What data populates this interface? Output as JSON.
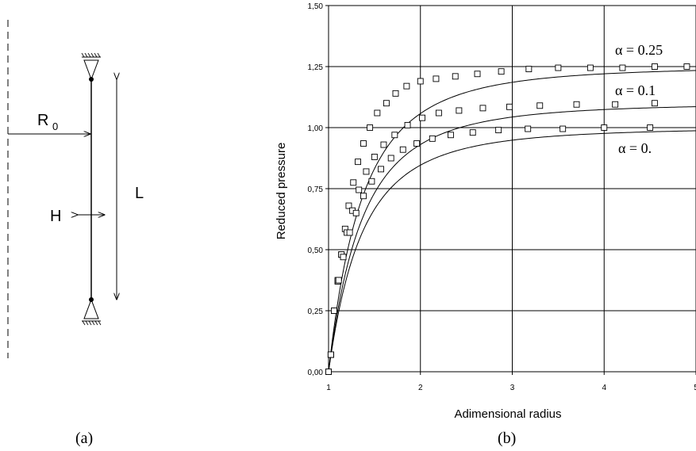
{
  "diagram": {
    "label_r0": "R",
    "label_r0_sub": "0",
    "label_h": "H",
    "label_l": "L",
    "caption": "(a)"
  },
  "chart_data": {
    "type": "line",
    "xlabel": "Adimensional radius",
    "ylabel": "Reduced pressure",
    "xlim": [
      1,
      5
    ],
    "ylim": [
      0,
      1.5
    ],
    "x_ticks": [
      "1",
      "2",
      "3",
      "4",
      "5"
    ],
    "y_ticks": [
      "0,00",
      "0,25",
      "0,50",
      "0,75",
      "1,00",
      "1,25",
      "1,50"
    ],
    "grid": true,
    "marker": "open-square",
    "caption": "(b)",
    "series": [
      {
        "name": "α = 0.25",
        "asymptote": 1.25,
        "x": [
          1.0,
          1.025,
          1.06,
          1.1,
          1.14,
          1.18,
          1.22,
          1.27,
          1.32,
          1.38,
          1.45,
          1.53,
          1.63,
          1.73,
          1.85,
          2.0,
          2.17,
          2.38,
          2.62,
          2.88,
          3.18,
          3.5,
          3.85,
          4.2,
          4.55,
          4.9
        ],
        "values": [
          0.0,
          0.07,
          0.25,
          0.37,
          0.48,
          0.585,
          0.68,
          0.775,
          0.86,
          0.935,
          1.0,
          1.06,
          1.1,
          1.14,
          1.17,
          1.19,
          1.2,
          1.21,
          1.22,
          1.23,
          1.24,
          1.245,
          1.245,
          1.245,
          1.25,
          1.25
        ]
      },
      {
        "name": "α = 0.1",
        "asymptote": 1.1,
        "x": [
          1.0,
          1.025,
          1.06,
          1.1,
          1.14,
          1.2,
          1.26,
          1.33,
          1.41,
          1.5,
          1.6,
          1.72,
          1.86,
          2.02,
          2.2,
          2.42,
          2.68,
          2.97,
          3.3,
          3.7,
          4.12,
          4.55
        ],
        "values": [
          0.0,
          0.07,
          0.25,
          0.375,
          0.48,
          0.57,
          0.66,
          0.745,
          0.82,
          0.88,
          0.93,
          0.97,
          1.01,
          1.04,
          1.06,
          1.07,
          1.08,
          1.085,
          1.09,
          1.095,
          1.095,
          1.1
        ]
      },
      {
        "name": "α = 0.",
        "asymptote": 1.0,
        "x": [
          1.0,
          1.025,
          1.06,
          1.11,
          1.16,
          1.23,
          1.3,
          1.38,
          1.47,
          1.57,
          1.68,
          1.81,
          1.96,
          2.13,
          2.33,
          2.57,
          2.85,
          3.17,
          3.55,
          4.0,
          4.5
        ],
        "values": [
          0.0,
          0.07,
          0.25,
          0.375,
          0.47,
          0.57,
          0.65,
          0.72,
          0.78,
          0.83,
          0.875,
          0.91,
          0.935,
          0.955,
          0.97,
          0.98,
          0.99,
          0.995,
          0.995,
          1.0,
          1.0
        ]
      }
    ]
  }
}
